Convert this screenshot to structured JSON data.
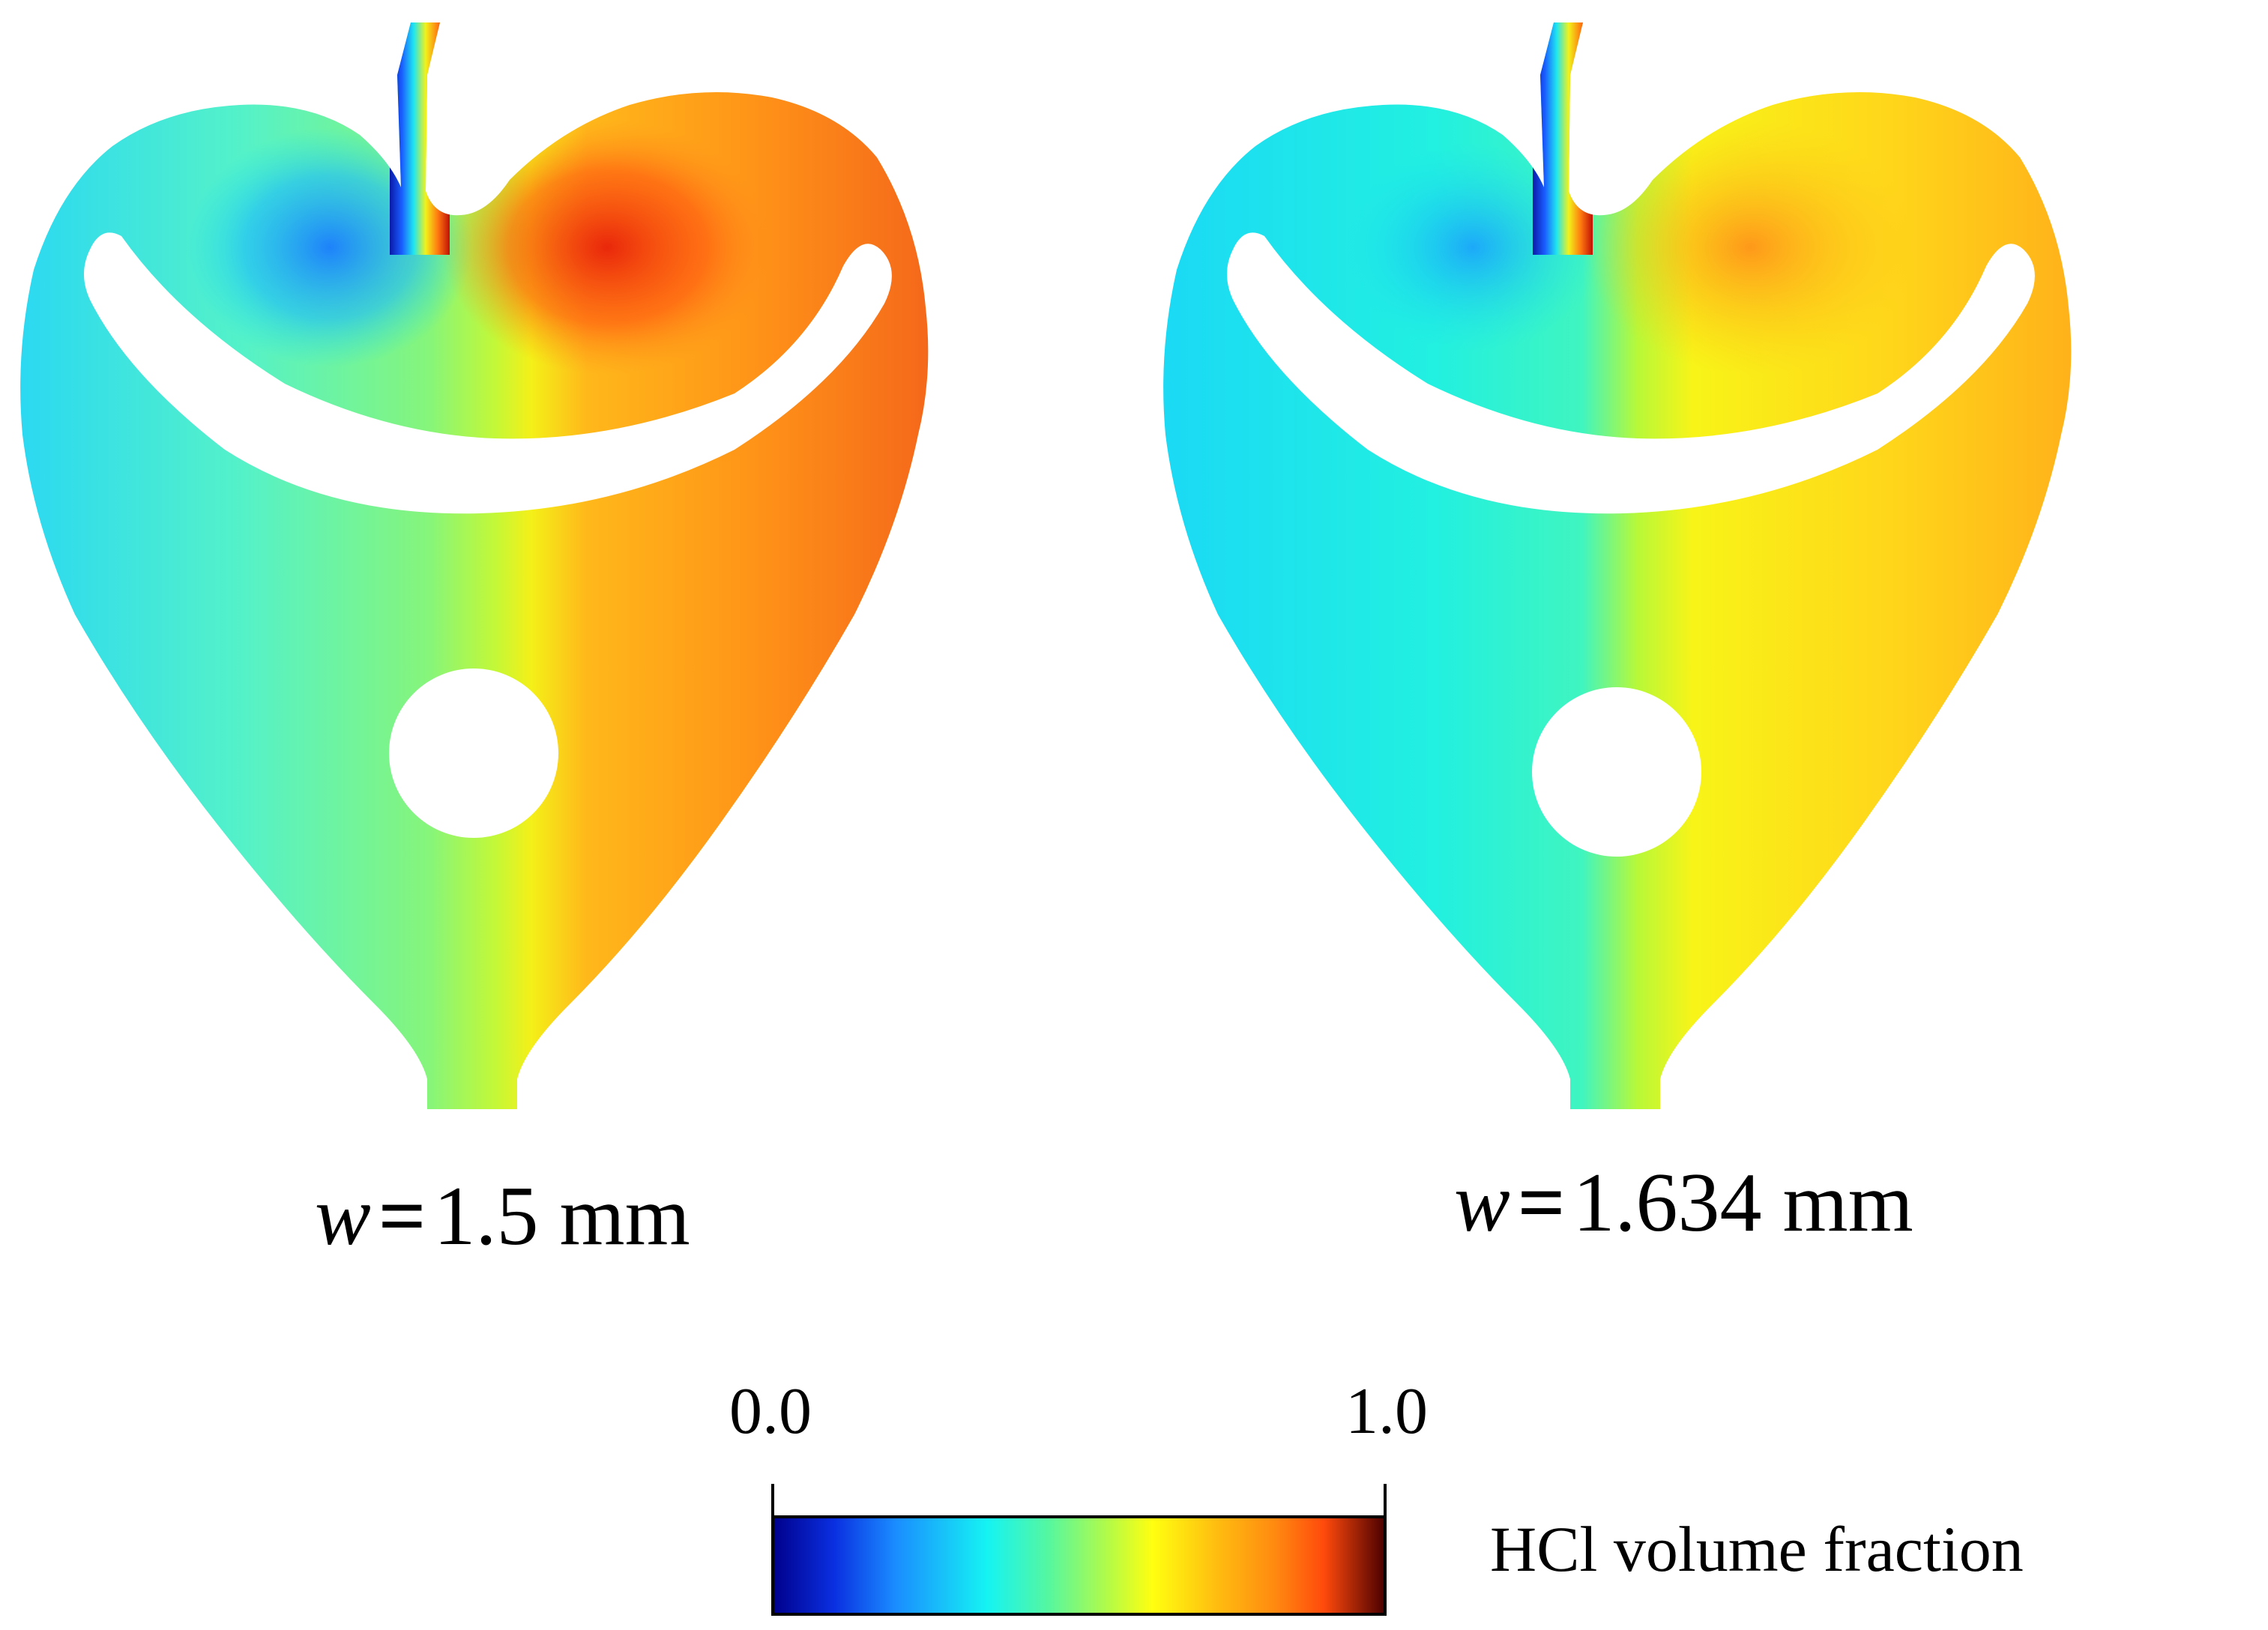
{
  "panels": [
    {
      "label_prefix": "w",
      "label_value": "1.5 mm"
    },
    {
      "label_prefix": "w",
      "label_value": "1.634 mm"
    }
  ],
  "colorbar": {
    "min_label": "0.0",
    "max_label": "1.0",
    "title": "HCl volume fraction",
    "colormap": "jet",
    "stops": [
      "#00008b",
      "#0a2fe0",
      "#1aa0ff",
      "#15f3f3",
      "#55f7a0",
      "#a6ff55",
      "#ffff10",
      "#ffc010",
      "#ff8a10",
      "#ff4a0c",
      "#4a0000"
    ]
  },
  "colors": {
    "blue": "#1a5cff",
    "cyan": "#1ee6f0",
    "green": "#7af46e",
    "yellow": "#f2f21a",
    "orange": "#ff8a1a",
    "red": "#ee2a0a"
  }
}
